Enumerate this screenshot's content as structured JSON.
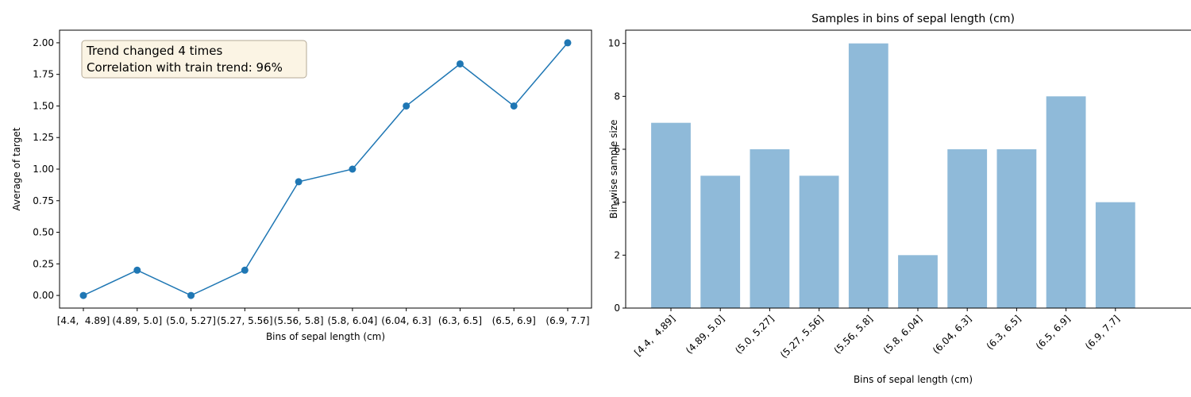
{
  "chart_data": [
    {
      "type": "line",
      "title": "",
      "xlabel": "Bins of sepal length (cm)",
      "ylabel": "Average of target",
      "categories": [
        "[4.4,  4.89]",
        "(4.89, 5.0]",
        "(5.0, 5.27]",
        "(5.27, 5.56]",
        "(5.56, 5.8]",
        "(5.8, 6.04]",
        "(6.04, 6.3]",
        "(6.3, 6.5]",
        "(6.5, 6.9]",
        "(6.9, 7.7]"
      ],
      "values": [
        0.0,
        0.2,
        0.0,
        0.2,
        0.9,
        1.0,
        1.5,
        1.833,
        1.5,
        2.0
      ],
      "ylim": [
        -0.1,
        2.1
      ],
      "yticks": [
        "0.00",
        "0.25",
        "0.50",
        "0.75",
        "1.00",
        "1.25",
        "1.50",
        "1.75",
        "2.00"
      ],
      "annotation": [
        "Trend changed 4 times",
        "Correlation with train trend: 96%"
      ],
      "annotation_placement": "top-left",
      "grid": false,
      "colors": {
        "line": "#1f77b4",
        "box_fill": "#fbf4e4",
        "box_edge": "#b5aa96"
      }
    },
    {
      "type": "bar",
      "title": "Samples in bins of sepal length (cm)",
      "xlabel": "Bins of sepal length (cm)",
      "ylabel": "Bin-wise sample size",
      "categories": [
        "[4.4,  4.89]",
        "(4.89, 5.0]",
        "(5.0, 5.27]",
        "(5.27, 5.56]",
        "(5.56, 5.8]",
        "(5.8, 6.04]",
        "(6.04, 6.3]",
        "(6.3, 6.5]",
        "(6.5, 6.9]",
        "(6.9, 7.7]"
      ],
      "values": [
        7,
        5,
        6,
        5,
        10,
        2,
        6,
        6,
        8,
        4
      ],
      "ylim": [
        0,
        10.5
      ],
      "yticks": [
        "0",
        "2",
        "4",
        "6",
        "8",
        "10"
      ],
      "xtick_rotation": 45,
      "grid": false,
      "colors": {
        "bar": "#8fbad9"
      }
    }
  ]
}
